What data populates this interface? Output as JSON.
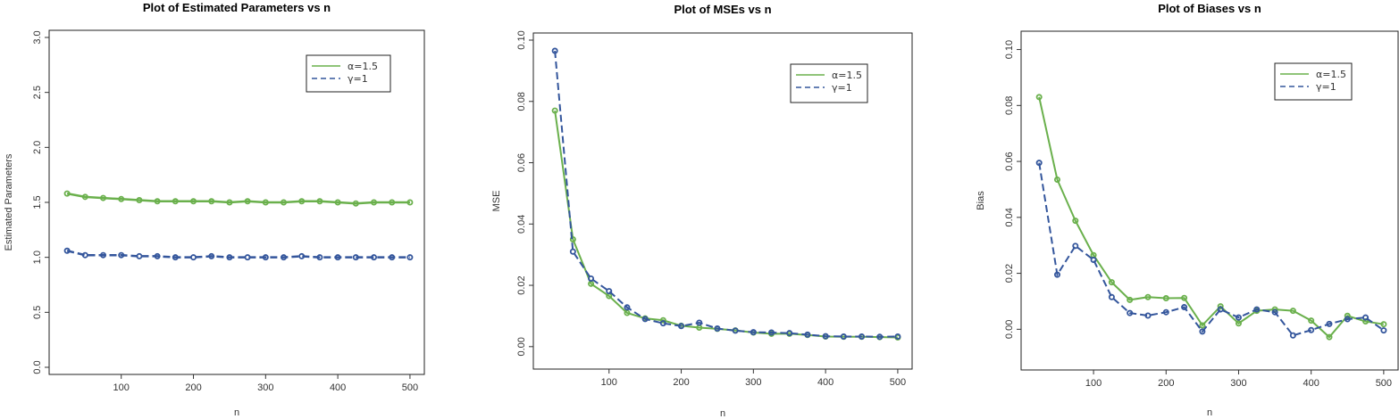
{
  "chart_data": [
    {
      "type": "line",
      "title": "Plot of Estimated Parameters vs n",
      "xlabel": "n",
      "ylabel": "Estimated Parameters",
      "xlim": [
        10,
        510
      ],
      "ylim": [
        0,
        3
      ],
      "xticks": [
        100,
        200,
        300,
        400,
        500
      ],
      "xtick_labels": [
        "100",
        "200",
        "300",
        "400",
        "500"
      ],
      "yticks": [
        0,
        0.5,
        1,
        1.5,
        2,
        2.5,
        3
      ],
      "ytick_labels": [
        "0.0",
        "0.5",
        "1.0",
        "1.5",
        "2.0",
        "2.5",
        "3.0"
      ],
      "grid": false,
      "legend_position": "top-right",
      "x": [
        25,
        50,
        75,
        100,
        125,
        150,
        175,
        200,
        225,
        250,
        275,
        300,
        325,
        350,
        375,
        400,
        425,
        450,
        475,
        500
      ],
      "series": [
        {
          "name": "α=1.5",
          "color": "#6ab04c",
          "dash": "solid",
          "values": [
            1.58,
            1.55,
            1.54,
            1.53,
            1.52,
            1.51,
            1.51,
            1.51,
            1.51,
            1.5,
            1.51,
            1.5,
            1.5,
            1.51,
            1.51,
            1.5,
            1.49,
            1.5,
            1.5,
            1.5
          ]
        },
        {
          "name": "γ=1",
          "color": "#34569c",
          "dash": "dashed",
          "values": [
            1.06,
            1.02,
            1.02,
            1.02,
            1.01,
            1.01,
            1.0,
            1.0,
            1.01,
            1.0,
            1.0,
            1.0,
            1.0,
            1.01,
            1.0,
            1.0,
            1.0,
            1.0,
            1.0,
            1.0
          ]
        }
      ]
    },
    {
      "type": "line",
      "title": "Plot of MSEs vs n",
      "xlabel": "n",
      "ylabel": "MSE",
      "xlim": [
        5,
        510
      ],
      "ylim": [
        -0.005,
        0.1
      ],
      "xticks": [
        100,
        200,
        300,
        400,
        500
      ],
      "xtick_labels": [
        "100",
        "200",
        "300",
        "400",
        "500"
      ],
      "yticks": [
        0,
        0.02,
        0.04,
        0.06,
        0.08,
        0.1
      ],
      "ytick_labels": [
        "0.00",
        "0.02",
        "0.04",
        "0.06",
        "0.08",
        "0.10"
      ],
      "grid": false,
      "legend_position": "top-right",
      "x": [
        25,
        50,
        75,
        100,
        125,
        150,
        175,
        200,
        225,
        250,
        275,
        300,
        325,
        350,
        375,
        400,
        425,
        450,
        475,
        500
      ],
      "series": [
        {
          "name": "α=1.5",
          "color": "#6ab04c",
          "dash": "solid",
          "values": [
            0.077,
            0.035,
            0.0205,
            0.0165,
            0.011,
            0.0092,
            0.0086,
            0.0068,
            0.0062,
            0.0058,
            0.0053,
            0.0046,
            0.0042,
            0.0042,
            0.0038,
            0.0033,
            0.0032,
            0.0032,
            0.0031,
            0.003
          ]
        },
        {
          "name": "γ=1",
          "color": "#34569c",
          "dash": "dashed",
          "values": [
            0.0965,
            0.031,
            0.0222,
            0.0181,
            0.0128,
            0.009,
            0.0076,
            0.0067,
            0.0078,
            0.0059,
            0.0052,
            0.0047,
            0.0046,
            0.0044,
            0.0039,
            0.0034,
            0.0033,
            0.0033,
            0.0032,
            0.0033
          ]
        }
      ]
    },
    {
      "type": "line",
      "title": "Plot of Biases vs n",
      "xlabel": "n",
      "ylabel": "Bias",
      "xlim": [
        10,
        510
      ],
      "ylim": [
        -0.012,
        0.104
      ],
      "xticks": [
        100,
        200,
        300,
        400,
        500
      ],
      "xtick_labels": [
        "100",
        "200",
        "300",
        "400",
        "500"
      ],
      "yticks": [
        0,
        0.02,
        0.04,
        0.06,
        0.08,
        0.1
      ],
      "ytick_labels": [
        "0.00",
        "0.02",
        "0.04",
        "0.06",
        "0.08",
        "0.10"
      ],
      "grid": false,
      "legend_position": "top-right",
      "x": [
        25,
        50,
        75,
        100,
        125,
        150,
        175,
        200,
        225,
        250,
        275,
        300,
        325,
        350,
        375,
        400,
        425,
        450,
        475,
        500
      ],
      "series": [
        {
          "name": "α=1.5",
          "color": "#6ab04c",
          "dash": "solid",
          "values": [
            0.083,
            0.0535,
            0.0388,
            0.0265,
            0.0168,
            0.0105,
            0.0115,
            0.0111,
            0.0112,
            0.0014,
            0.0082,
            0.0021,
            0.0066,
            0.0071,
            0.0066,
            0.0031,
            -0.0028,
            0.0048,
            0.0028,
            0.0018
          ]
        },
        {
          "name": "γ=1",
          "color": "#34569c",
          "dash": "dashed",
          "values": [
            0.0595,
            0.0195,
            0.0298,
            0.0248,
            0.0115,
            0.0058,
            0.0049,
            0.0061,
            0.0079,
            -0.0008,
            0.0071,
            0.0042,
            0.0071,
            0.0061,
            -0.0022,
            -0.0003,
            0.0019,
            0.0036,
            0.0042,
            -0.0004
          ]
        }
      ]
    }
  ]
}
